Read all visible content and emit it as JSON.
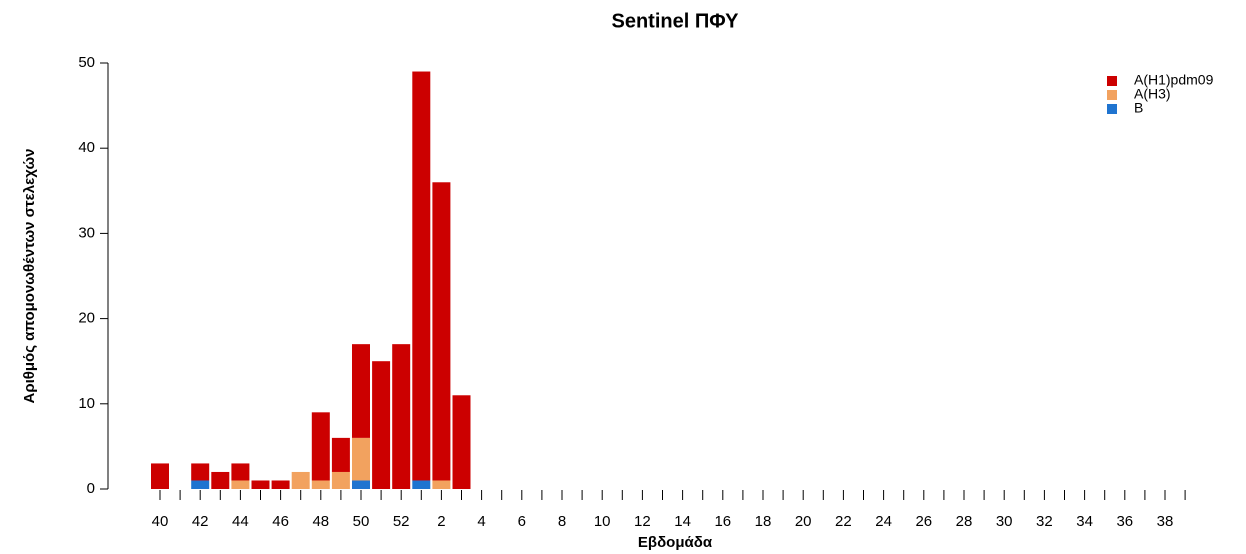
{
  "chart_data": {
    "type": "stacked-bar",
    "title": "Sentinel ΠΦΥ",
    "xlabel": "Εβδομάδα",
    "ylabel": "Αριθμός απομονωθέντων στελεχών",
    "categories": [
      "40",
      null,
      "42",
      null,
      "44",
      null,
      "46",
      null,
      "48",
      null,
      "50",
      null,
      "52",
      null,
      "2",
      null,
      "4",
      null,
      "6",
      null,
      "8",
      null,
      "10",
      null,
      "12",
      null,
      "14",
      null,
      "16",
      null,
      "18",
      null,
      "20",
      null,
      "22",
      null,
      "24",
      null,
      "26",
      null,
      "28",
      null,
      "30",
      null,
      "32",
      null,
      "34",
      null,
      "36",
      null,
      "38",
      null
    ],
    "series": [
      {
        "name": "A(H1)pdm09",
        "color": "#cc0000",
        "values": [
          3,
          0,
          2,
          2,
          2,
          1,
          1,
          0,
          8,
          4,
          11,
          15,
          17,
          48,
          35,
          11,
          0,
          0,
          0,
          0,
          0,
          0,
          0,
          0,
          0,
          0,
          0,
          0,
          0,
          0,
          0,
          0,
          0,
          0,
          0,
          0,
          0,
          0,
          0,
          0,
          0,
          0,
          0,
          0,
          0,
          0,
          0,
          0,
          0,
          0,
          0,
          0
        ]
      },
      {
        "name": "A(H3)",
        "color": "#f2a25f",
        "values": [
          0,
          0,
          0,
          0,
          1,
          0,
          0,
          2,
          1,
          2,
          5,
          0,
          0,
          0,
          1,
          0,
          0,
          0,
          0,
          0,
          0,
          0,
          0,
          0,
          0,
          0,
          0,
          0,
          0,
          0,
          0,
          0,
          0,
          0,
          0,
          0,
          0,
          0,
          0,
          0,
          0,
          0,
          0,
          0,
          0,
          0,
          0,
          0,
          0,
          0,
          0,
          0
        ]
      },
      {
        "name": "B",
        "color": "#1f74d0",
        "values": [
          0,
          0,
          1,
          0,
          0,
          0,
          0,
          0,
          0,
          0,
          1,
          0,
          0,
          1,
          0,
          0,
          0,
          0,
          0,
          0,
          0,
          0,
          0,
          0,
          0,
          0,
          0,
          0,
          0,
          0,
          0,
          0,
          0,
          0,
          0,
          0,
          0,
          0,
          0,
          0,
          0,
          0,
          0,
          0,
          0,
          0,
          0,
          0,
          0,
          0,
          0,
          0
        ]
      }
    ],
    "ylim": [
      0,
      50
    ],
    "yticks": [
      0,
      10,
      20,
      30,
      40,
      50
    ],
    "legend": "top-right"
  }
}
